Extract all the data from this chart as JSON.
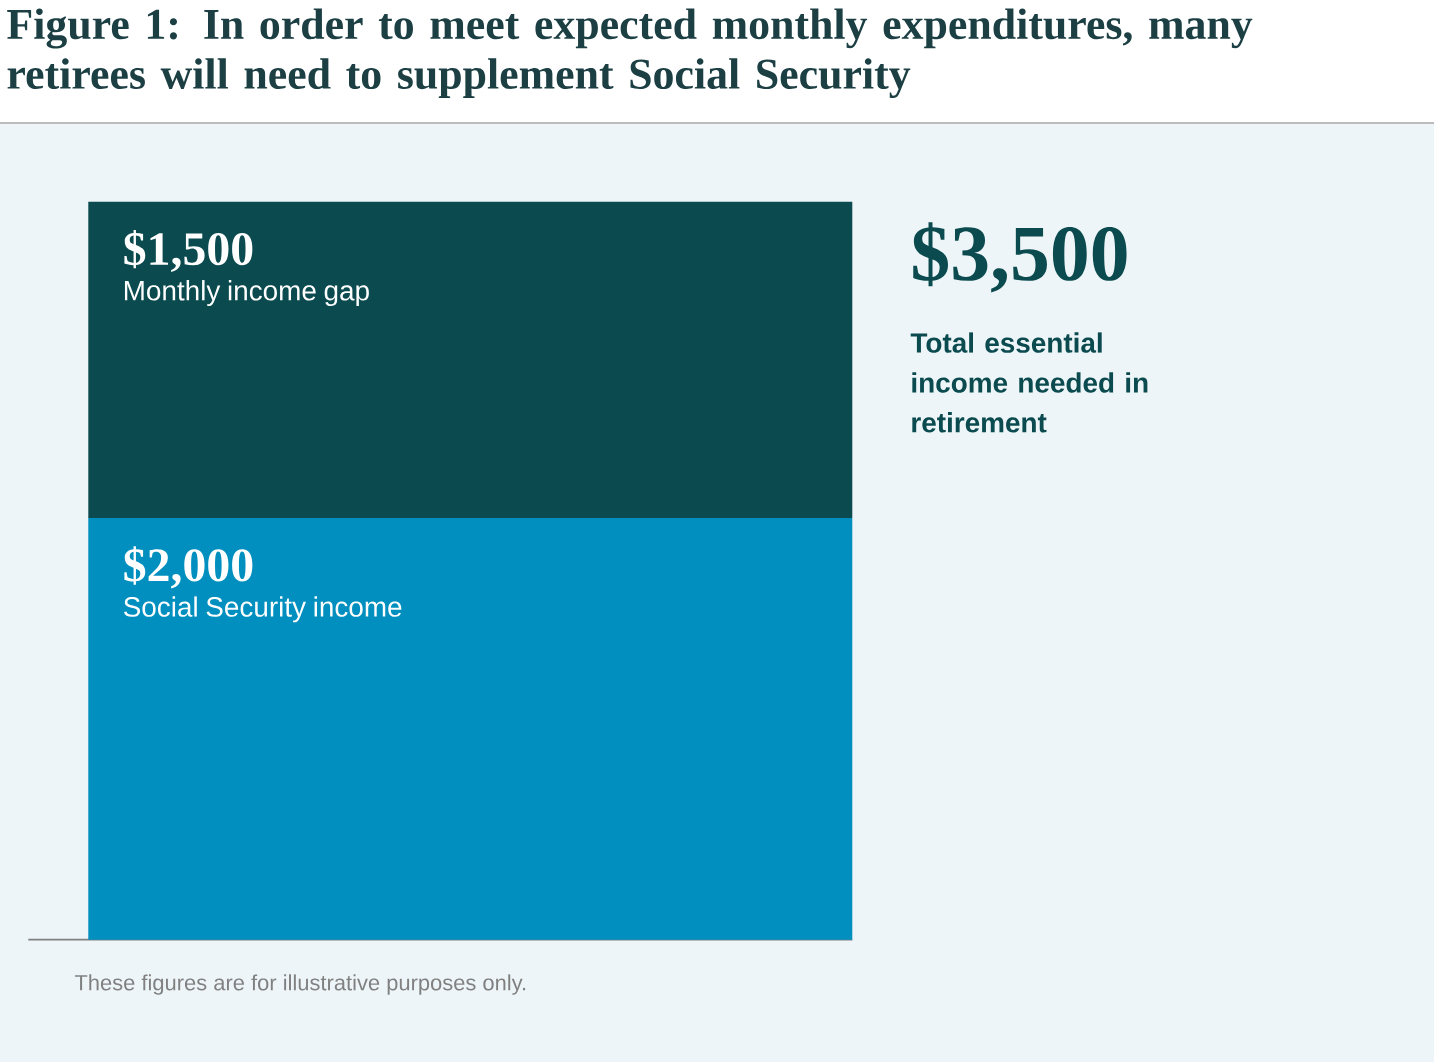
{
  "chart_data": {
    "type": "bar",
    "stacked": true,
    "title": "Figure 1: In order to meet expected monthly expenditures, many retirees will need to supplement Social Security",
    "categories": [
      null
    ],
    "ylim": [
      0,
      3500
    ],
    "series": [
      {
        "name": "Social Security income",
        "color": "#008fbe",
        "values": [
          2000
        ],
        "value_labels": [
          "$2,000"
        ]
      },
      {
        "name": "Monthly income gap",
        "color": "#0b4b4f",
        "values": [
          1500
        ],
        "value_labels": [
          "$1,500"
        ]
      }
    ],
    "totals": [
      "$3,500"
    ],
    "annotations": [
      "Total essential income needed in retirement",
      "These figures are for illustrative purposes only."
    ]
  }
}
